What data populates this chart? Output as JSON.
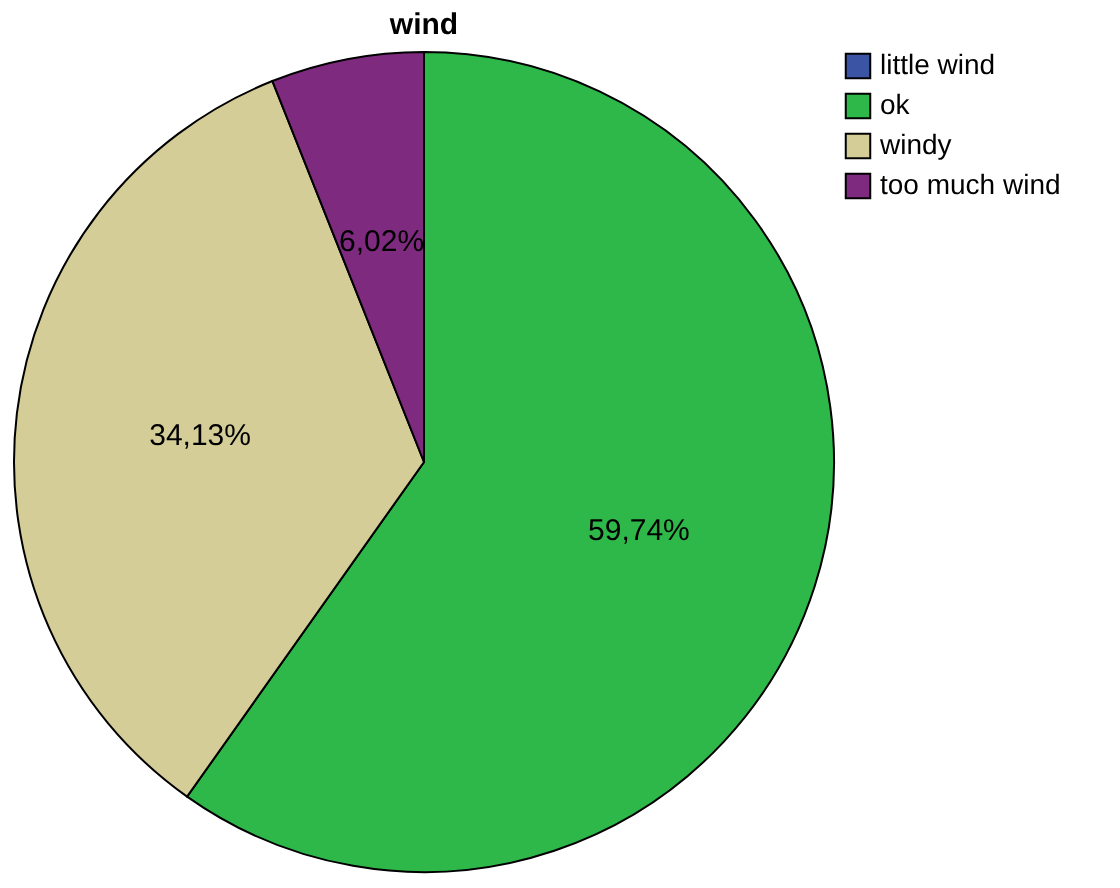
{
  "chart_data": {
    "type": "pie",
    "title": "wind",
    "categories": [
      "little wind",
      "ok",
      "windy",
      "too much wind"
    ],
    "values": [
      null,
      59.74,
      34.13,
      6.02
    ],
    "value_labels": [
      null,
      "59,74%",
      "34,13%",
      "6,02%"
    ],
    "colors": [
      "#3b54a4",
      "#2eb84a",
      "#d4cd98",
      "#7e2a7e"
    ],
    "legend": "top right"
  }
}
